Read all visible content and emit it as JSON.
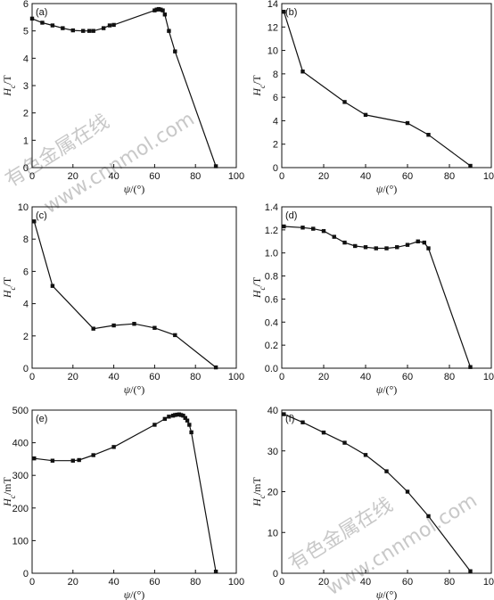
{
  "watermark": [
    "有色金属在线",
    "www.cnnmol.com"
  ],
  "chart_data": [
    {
      "type": "line",
      "panel_label": "(a)",
      "ylabel": "Hc/T",
      "xlabel": "ψ/(°)",
      "xlim": [
        0,
        100
      ],
      "ylim": [
        0,
        6
      ],
      "xticks": [
        0,
        20,
        40,
        60,
        80,
        100
      ],
      "yticks": [
        0,
        1,
        2,
        3,
        4,
        5,
        6
      ],
      "x": [
        0,
        5,
        10,
        15,
        20,
        25,
        28,
        30,
        35,
        38,
        40,
        60,
        61,
        62,
        63,
        64,
        65,
        67,
        70,
        90
      ],
      "y": [
        5.45,
        5.3,
        5.2,
        5.1,
        5.02,
        5.0,
        5.0,
        5.0,
        5.1,
        5.2,
        5.22,
        5.75,
        5.78,
        5.8,
        5.78,
        5.75,
        5.6,
        5.0,
        4.25,
        0.05
      ]
    },
    {
      "type": "line",
      "panel_label": "(b)",
      "ylabel": "Hc/T",
      "xlabel": "ψ/(°)",
      "xlim": [
        0,
        100
      ],
      "ylim": [
        0,
        14
      ],
      "xticks": [
        0,
        20,
        40,
        60,
        80,
        100
      ],
      "yticks": [
        0,
        2,
        4,
        6,
        8,
        10,
        12,
        14
      ],
      "x": [
        1,
        10,
        30,
        40,
        60,
        70,
        90
      ],
      "y": [
        13.3,
        8.2,
        5.6,
        4.5,
        3.8,
        2.8,
        0.15
      ]
    },
    {
      "type": "line",
      "panel_label": "(c)",
      "ylabel": "Hc/T",
      "xlabel": "ψ/(°)",
      "xlim": [
        0,
        100
      ],
      "ylim": [
        0,
        10
      ],
      "xticks": [
        0,
        20,
        40,
        60,
        80,
        100
      ],
      "yticks": [
        0,
        2,
        4,
        6,
        8,
        10
      ],
      "x": [
        1,
        10,
        30,
        40,
        50,
        60,
        70,
        90
      ],
      "y": [
        9.1,
        5.1,
        2.45,
        2.65,
        2.75,
        2.5,
        2.05,
        0.05
      ]
    },
    {
      "type": "line",
      "panel_label": "(d)",
      "ylabel": "Hc/T",
      "xlabel": "ψ/(°)",
      "xlim": [
        0,
        100
      ],
      "ylim": [
        0,
        1.4
      ],
      "xticks": [
        0,
        20,
        40,
        60,
        80,
        100
      ],
      "yticks": [
        0,
        0.2,
        0.4,
        0.6,
        0.8,
        1.0,
        1.2,
        1.4
      ],
      "x": [
        1,
        10,
        15,
        20,
        25,
        30,
        35,
        40,
        45,
        50,
        55,
        60,
        65,
        68,
        70,
        90
      ],
      "y": [
        1.23,
        1.22,
        1.21,
        1.19,
        1.14,
        1.09,
        1.06,
        1.05,
        1.04,
        1.04,
        1.05,
        1.07,
        1.1,
        1.09,
        1.04,
        0.01
      ]
    },
    {
      "type": "line",
      "panel_label": "(e)",
      "ylabel": "Hc/mT",
      "xlabel": "ψ/(°)",
      "xlim": [
        0,
        100
      ],
      "ylim": [
        0,
        500
      ],
      "xticks": [
        0,
        20,
        40,
        60,
        80,
        100
      ],
      "yticks": [
        0,
        100,
        200,
        300,
        400,
        500
      ],
      "x": [
        1,
        10,
        20,
        23,
        30,
        40,
        60,
        65,
        67,
        69,
        70,
        71,
        72,
        73,
        74,
        75,
        76,
        77,
        78,
        90
      ],
      "y": [
        352,
        345,
        345,
        347,
        362,
        387,
        455,
        473,
        480,
        483,
        485,
        486,
        487,
        485,
        483,
        476,
        468,
        455,
        432,
        5
      ]
    },
    {
      "type": "line",
      "panel_label": "(f)",
      "ylabel": "Hc/mT",
      "xlabel": "ψ/(°)",
      "xlim": [
        0,
        100
      ],
      "ylim": [
        0,
        40
      ],
      "xticks": [
        0,
        20,
        40,
        60,
        80,
        100
      ],
      "yticks": [
        0,
        10,
        20,
        30,
        40
      ],
      "x": [
        1,
        10,
        20,
        30,
        40,
        50,
        60,
        70,
        90
      ],
      "y": [
        39,
        37,
        34.5,
        32,
        29,
        25,
        20,
        14,
        0.5
      ]
    }
  ]
}
